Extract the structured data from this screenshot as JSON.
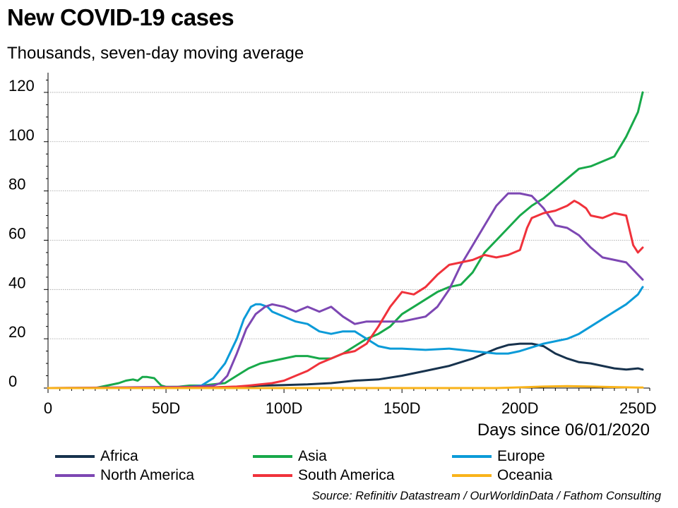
{
  "title": "New COVID-19 cases",
  "subtitle": "Thousands, seven-day moving average",
  "source": "Source: Refinitiv Datastream / OurWorldinData / Fathom Consulting",
  "chart_data": {
    "type": "line",
    "title": "New COVID-19 cases",
    "subtitle": "Thousands, seven-day moving average",
    "xlabel": "Days since 06/01/2020",
    "ylabel": "",
    "xlim": [
      0,
      255
    ],
    "ylim": [
      0,
      128
    ],
    "grid": true,
    "legend_position": "bottom",
    "x_ticks": [
      {
        "value": 0,
        "label": "0"
      },
      {
        "value": 50,
        "label": "50D"
      },
      {
        "value": 100,
        "label": "100D"
      },
      {
        "value": 150,
        "label": "150D"
      },
      {
        "value": 200,
        "label": "200D"
      },
      {
        "value": 250,
        "label": "250D"
      }
    ],
    "y_ticks": [
      {
        "value": 0,
        "label": "0"
      },
      {
        "value": 20,
        "label": "20"
      },
      {
        "value": 40,
        "label": "40"
      },
      {
        "value": 60,
        "label": "60"
      },
      {
        "value": 80,
        "label": "80"
      },
      {
        "value": 100,
        "label": "100"
      },
      {
        "value": 120,
        "label": "120"
      }
    ],
    "series": [
      {
        "name": "Africa",
        "color": "#17324d",
        "x": [
          0,
          60,
          80,
          90,
          100,
          110,
          120,
          130,
          140,
          150,
          160,
          170,
          180,
          190,
          195,
          200,
          205,
          210,
          215,
          220,
          225,
          230,
          235,
          240,
          245,
          250,
          252
        ],
        "y": [
          0,
          0,
          0.5,
          1,
          1.2,
          1.5,
          2,
          3,
          3.5,
          5,
          7,
          9,
          12,
          16,
          17.5,
          18,
          18,
          17,
          14,
          12,
          10.5,
          10,
          9,
          8,
          7.5,
          8,
          7.5
        ]
      },
      {
        "name": "Asia",
        "color": "#18a94a",
        "x": [
          0,
          20,
          25,
          30,
          33,
          36,
          38,
          40,
          42,
          45,
          48,
          50,
          55,
          60,
          65,
          70,
          75,
          80,
          85,
          90,
          95,
          100,
          105,
          110,
          115,
          120,
          125,
          130,
          135,
          140,
          145,
          150,
          155,
          160,
          165,
          170,
          175,
          180,
          185,
          190,
          195,
          200,
          205,
          210,
          215,
          220,
          225,
          230,
          235,
          240,
          245,
          250,
          252
        ],
        "y": [
          0,
          0,
          1,
          2,
          3,
          3.5,
          3,
          4.5,
          4.5,
          4,
          1,
          0.5,
          0.5,
          1,
          1,
          1.5,
          2,
          5,
          8,
          10,
          11,
          12,
          13,
          13,
          12,
          12,
          14,
          17,
          20,
          22,
          25,
          30,
          33,
          36,
          39,
          41,
          42,
          47,
          55,
          60,
          65,
          70,
          74,
          77,
          81,
          85,
          89,
          90,
          92,
          94,
          102,
          112,
          120
        ]
      },
      {
        "name": "Europe",
        "color": "#0b9bd8",
        "x": [
          0,
          55,
          60,
          65,
          70,
          75,
          80,
          83,
          86,
          88,
          90,
          93,
          95,
          100,
          105,
          110,
          115,
          120,
          125,
          130,
          135,
          140,
          145,
          150,
          160,
          170,
          180,
          190,
          195,
          200,
          210,
          220,
          225,
          230,
          235,
          240,
          245,
          250,
          252
        ],
        "y": [
          0,
          0,
          0.5,
          1,
          4,
          10,
          20,
          28,
          33,
          34,
          34,
          33,
          31,
          29,
          27,
          26,
          23,
          22,
          23,
          23,
          20,
          17,
          16,
          16,
          15.5,
          16,
          15,
          14,
          14,
          15,
          18,
          20,
          22,
          25,
          28,
          31,
          34,
          38,
          41
        ]
      },
      {
        "name": "North America",
        "color": "#7d47b3",
        "x": [
          0,
          60,
          70,
          73,
          76,
          80,
          84,
          88,
          92,
          95,
          100,
          105,
          110,
          115,
          120,
          125,
          130,
          135,
          140,
          145,
          150,
          155,
          160,
          165,
          170,
          175,
          180,
          185,
          190,
          195,
          200,
          205,
          210,
          215,
          220,
          225,
          230,
          235,
          240,
          245,
          250,
          252
        ],
        "y": [
          0,
          0.5,
          1,
          2,
          5,
          14,
          24,
          30,
          33,
          34,
          33,
          31,
          33,
          31,
          33,
          29,
          26,
          27,
          27,
          27,
          27,
          28,
          29,
          33,
          40,
          50,
          58,
          66,
          74,
          79,
          79,
          78,
          73,
          66,
          65,
          62,
          57,
          53,
          52,
          51,
          46,
          44
        ]
      },
      {
        "name": "South America",
        "color": "#f0323b",
        "x": [
          0,
          70,
          80,
          85,
          90,
          95,
          100,
          105,
          110,
          115,
          120,
          125,
          130,
          135,
          140,
          145,
          150,
          155,
          160,
          165,
          170,
          175,
          180,
          185,
          190,
          195,
          200,
          203,
          205,
          210,
          215,
          220,
          223,
          225,
          228,
          230,
          235,
          240,
          245,
          248,
          250,
          252
        ],
        "y": [
          0,
          0.3,
          0.6,
          1,
          1.5,
          2,
          3,
          5,
          7,
          10,
          12,
          14,
          15,
          18,
          25,
          33,
          39,
          38,
          41,
          46,
          50,
          51,
          52,
          54,
          53,
          54,
          56,
          65,
          69,
          71,
          72,
          74,
          76,
          75,
          73,
          70,
          69,
          71,
          70,
          58,
          55,
          57
        ]
      },
      {
        "name": "Oceania",
        "color": "#f9b31a",
        "x": [
          0,
          50,
          100,
          150,
          190,
          200,
          210,
          220,
          230,
          240,
          250,
          252
        ],
        "y": [
          0,
          0,
          0,
          0,
          0,
          0.3,
          0.6,
          0.8,
          0.6,
          0.4,
          0.2,
          0.2
        ]
      }
    ]
  }
}
